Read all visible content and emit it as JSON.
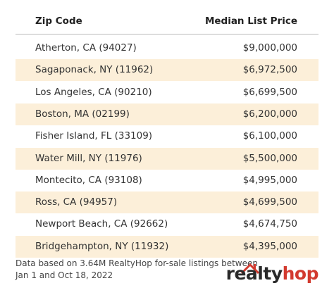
{
  "table": {
    "header": [
      "Zip Code",
      "Median List Price"
    ],
    "rows": [
      [
        "Atherton, CA (94027)",
        "$9,000,000"
      ],
      [
        "Sagaponack, NY (11962)",
        "$6,972,500"
      ],
      [
        "Los Angeles, CA (90210)",
        "$6,699,500"
      ],
      [
        "Boston, MA (02199)",
        "$6,200,000"
      ],
      [
        "Fisher Island, FL (33109)",
        "$6,100,000"
      ],
      [
        "Water Mill, NY (11976)",
        "$5,500,000"
      ],
      [
        "Montecito, CA (93108)",
        "$4,995,000"
      ],
      [
        "Ross, CA (94957)",
        "$4,699,500"
      ],
      [
        "Newport Beach, CA (92662)",
        "$4,674,750"
      ],
      [
        "Bridgehampton, NY (11932)",
        "$4,395,000"
      ]
    ]
  },
  "footnote": [
    "Data based on 3.64M RealtyHop for-sale listings between",
    "Jan 1 and Oct 18, 2022"
  ],
  "logo": [
    "realty",
    "hop"
  ]
}
